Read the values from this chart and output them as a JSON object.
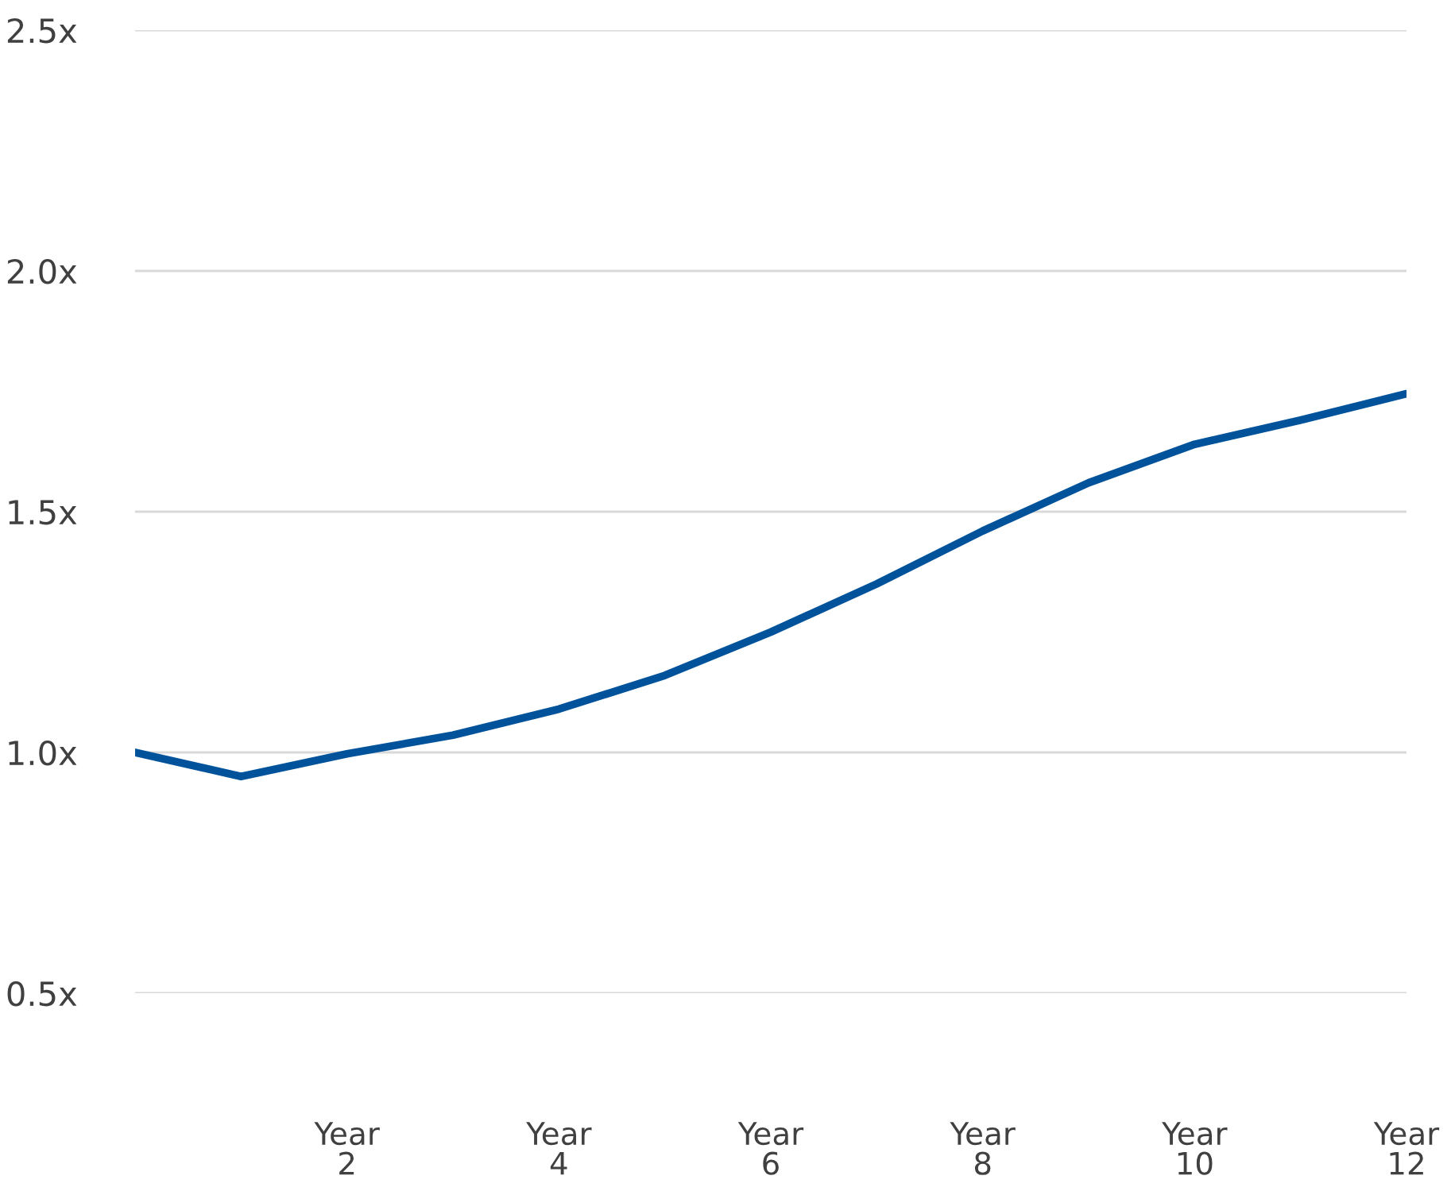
{
  "chart_data": {
    "type": "line",
    "categories": [
      null,
      null,
      "Year\n2",
      null,
      "Year\n4",
      null,
      "Year\n6",
      null,
      "Year\n8",
      null,
      "Year\n10",
      null,
      "Year\n12"
    ],
    "series": [
      {
        "color": "#00529b",
        "values": [
          1.0,
          0.95,
          0.997,
          1.036,
          1.09,
          1.16,
          1.25,
          1.35,
          1.46,
          1.56,
          1.64,
          1.69,
          1.745
        ]
      }
    ],
    "ylim": [
      0.5,
      2.5
    ],
    "yticks": [
      {
        "value": 0.5,
        "label": "0.5x"
      },
      {
        "value": 1.0,
        "label": "1.0x"
      },
      {
        "value": 1.5,
        "label": "1.5x"
      },
      {
        "value": 2.0,
        "label": "2.0x"
      },
      {
        "value": 2.5,
        "label": "2.5x"
      }
    ],
    "grid": "y",
    "line_style": "solid",
    "marker": "none"
  }
}
